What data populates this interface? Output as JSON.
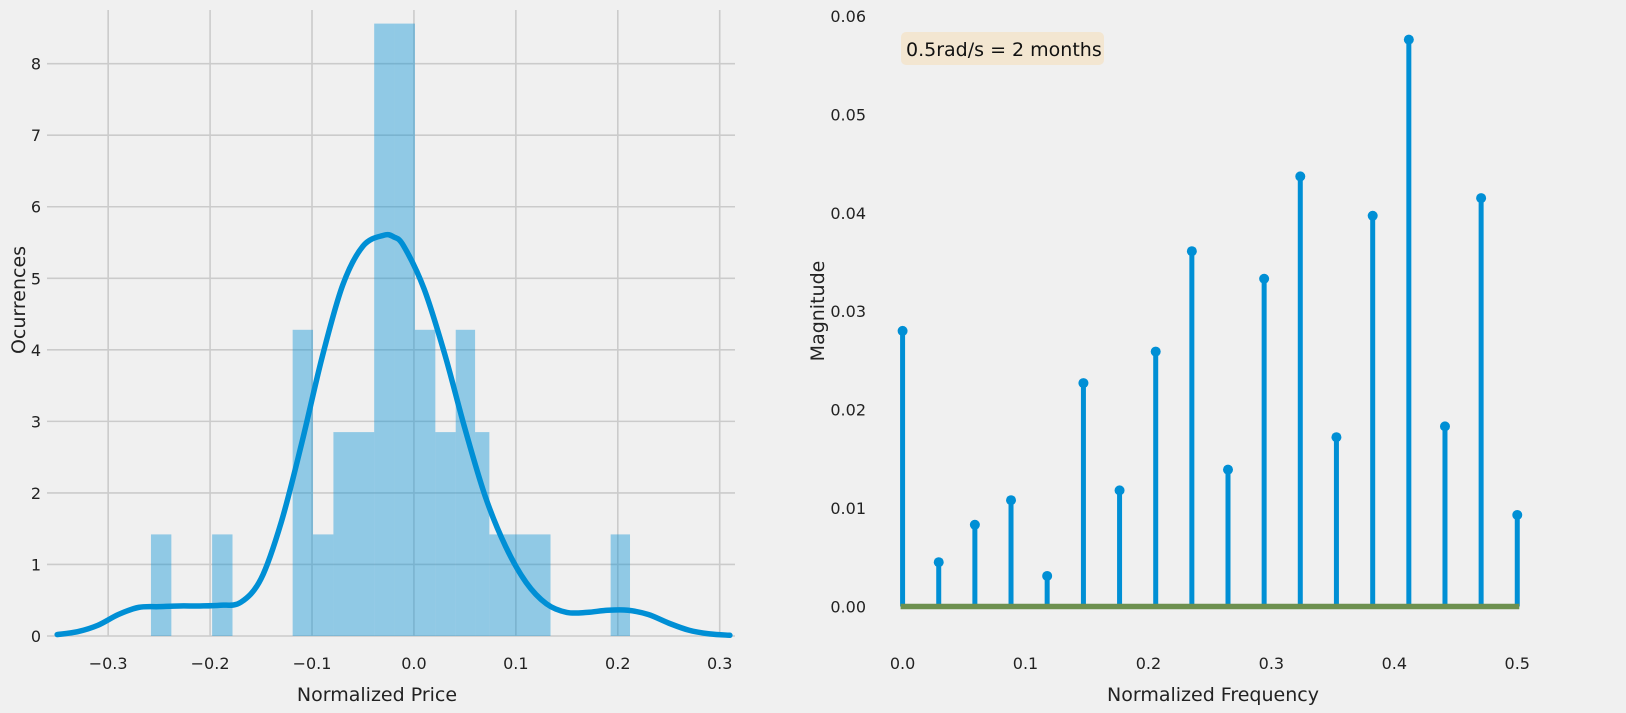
{
  "colors": {
    "background": "#f0f0f0",
    "grid": "#cbcbcb",
    "bar": "#008fd5",
    "kde": "#008fd5",
    "stem": "#008fd5",
    "baseline": "#6d904f",
    "annotation_bg": "#f3e4cb"
  },
  "chart_data": [
    {
      "type": "bar",
      "subtype": "histogram-with-kde",
      "xlabel": "Normalized Price",
      "ylabel": "Ocurrences",
      "xlim": [
        -0.36,
        0.315
      ],
      "ylim": [
        0,
        8.75
      ],
      "grid": true,
      "xticks": [
        -0.3,
        -0.2,
        -0.1,
        0.0,
        0.1,
        0.2,
        0.3
      ],
      "xtick_labels": [
        "−0.3",
        "−0.2",
        "−0.1",
        "0.0",
        "0.1",
        "0.2",
        "0.3"
      ],
      "yticks": [
        0,
        1,
        2,
        3,
        4,
        5,
        6,
        7,
        8
      ],
      "ytick_labels": [
        "0",
        "1",
        "2",
        "3",
        "4",
        "5",
        "6",
        "7",
        "8"
      ],
      "bins": [
        {
          "x0": -0.258,
          "x1": -0.238,
          "value": 1.42
        },
        {
          "x0": -0.198,
          "x1": -0.178,
          "value": 1.42
        },
        {
          "x0": -0.119,
          "x1": -0.099,
          "value": 4.28
        },
        {
          "x0": -0.099,
          "x1": -0.079,
          "value": 1.42
        },
        {
          "x0": -0.079,
          "x1": -0.039,
          "value": 2.85
        },
        {
          "x0": -0.039,
          "x1": -0.019,
          "value": 8.56
        },
        {
          "x0": -0.019,
          "x1": 0.001,
          "value": 8.56
        },
        {
          "x0": 0.001,
          "x1": 0.021,
          "value": 4.28
        },
        {
          "x0": 0.021,
          "x1": 0.041,
          "value": 2.85
        },
        {
          "x0": 0.041,
          "x1": 0.06,
          "value": 4.28
        },
        {
          "x0": 0.06,
          "x1": 0.074,
          "value": 2.85
        },
        {
          "x0": 0.074,
          "x1": 0.134,
          "value": 1.42
        },
        {
          "x0": 0.193,
          "x1": 0.212,
          "value": 1.42
        }
      ],
      "kde": {
        "x": [
          -0.35,
          -0.33,
          -0.31,
          -0.29,
          -0.27,
          -0.25,
          -0.23,
          -0.21,
          -0.19,
          -0.17,
          -0.15,
          -0.13,
          -0.11,
          -0.09,
          -0.07,
          -0.05,
          -0.03,
          -0.02,
          -0.01,
          0.01,
          0.03,
          0.05,
          0.07,
          0.09,
          0.11,
          0.13,
          0.15,
          0.17,
          0.19,
          0.21,
          0.23,
          0.25,
          0.27,
          0.29,
          0.31
        ],
        "y": [
          0.02,
          0.06,
          0.15,
          0.3,
          0.4,
          0.41,
          0.42,
          0.42,
          0.43,
          0.47,
          0.8,
          1.6,
          2.7,
          3.9,
          4.9,
          5.45,
          5.6,
          5.58,
          5.45,
          4.85,
          3.95,
          2.9,
          1.95,
          1.25,
          0.75,
          0.45,
          0.33,
          0.33,
          0.36,
          0.36,
          0.3,
          0.18,
          0.08,
          0.03,
          0.01
        ]
      }
    },
    {
      "type": "scatter",
      "subtype": "stem",
      "xlabel": "Normalized Frequency",
      "ylabel": "Magnitude",
      "xlim": [
        -0.02,
        0.525
      ],
      "ylim": [
        -0.003,
        0.06
      ],
      "grid": false,
      "xticks": [
        0.0,
        0.1,
        0.2,
        0.3,
        0.4,
        0.5
      ],
      "xtick_labels": [
        "0.0",
        "0.1",
        "0.2",
        "0.3",
        "0.4",
        "0.5"
      ],
      "yticks": [
        0.0,
        0.01,
        0.02,
        0.03,
        0.04,
        0.05,
        0.06
      ],
      "ytick_labels": [
        "0.00",
        "0.01",
        "0.02",
        "0.03",
        "0.04",
        "0.05",
        "0.06"
      ],
      "x": [
        0.0,
        0.0294,
        0.0588,
        0.0882,
        0.1176,
        0.1471,
        0.1765,
        0.2059,
        0.2353,
        0.2647,
        0.2941,
        0.3235,
        0.3529,
        0.3824,
        0.4118,
        0.4412,
        0.4706,
        0.5
      ],
      "y": [
        0.028,
        0.0045,
        0.0083,
        0.0108,
        0.0031,
        0.0227,
        0.0118,
        0.0259,
        0.0361,
        0.0139,
        0.0333,
        0.0437,
        0.0172,
        0.0397,
        0.0576,
        0.0183,
        0.0415,
        0.0093
      ],
      "annotation": "0.5rad/s = 2 months",
      "baseline": 0.0
    }
  ]
}
